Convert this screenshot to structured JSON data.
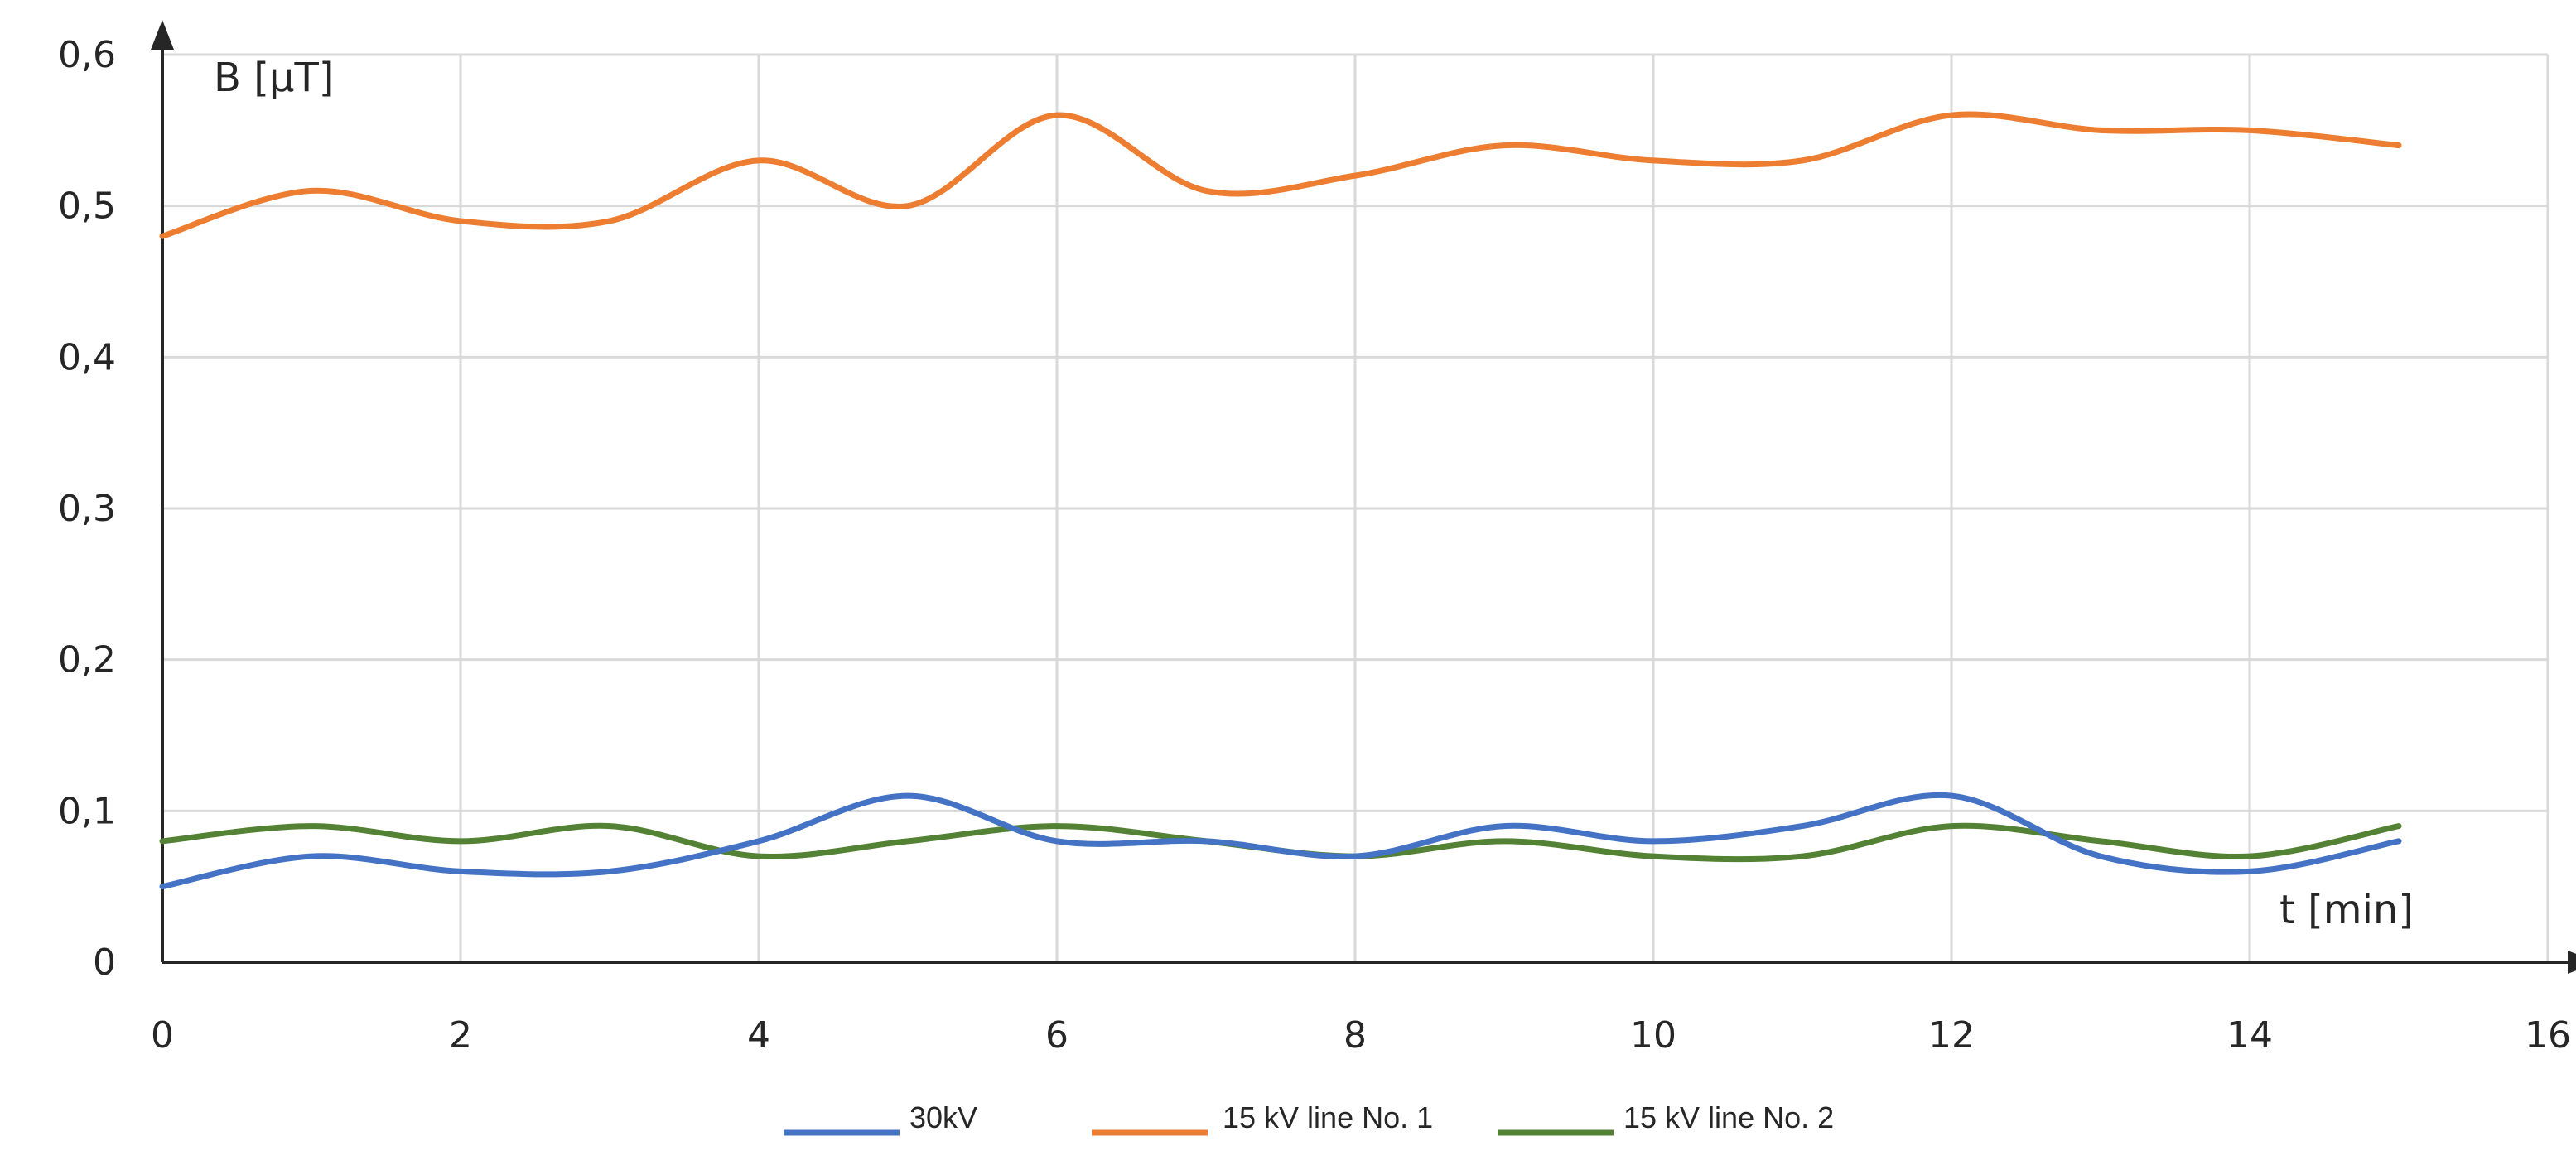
{
  "chart_data": {
    "type": "line",
    "title": "",
    "xlabel": "t [min]",
    "ylabel": "B [µT]",
    "xlim": [
      0,
      16
    ],
    "ylim": [
      0,
      0.6
    ],
    "x_ticks": [
      0,
      2,
      4,
      6,
      8,
      10,
      12,
      14,
      16
    ],
    "y_ticks": [
      0,
      0.1,
      0.2,
      0.3,
      0.4,
      0.5,
      0.6
    ],
    "x_tick_labels": [
      "0",
      "2",
      "4",
      "6",
      "8",
      "10",
      "12",
      "14",
      "16"
    ],
    "y_tick_labels": [
      "0",
      "0,1",
      "0,2",
      "0,3",
      "0,4",
      "0,5",
      "0,6"
    ],
    "grid": true,
    "legend_position": "bottom",
    "x": [
      0,
      1,
      2,
      3,
      4,
      5,
      6,
      7,
      8,
      9,
      10,
      11,
      12,
      13,
      14,
      15
    ],
    "series": [
      {
        "name": "30kV",
        "color": "#4472c4",
        "values": [
          0.05,
          0.07,
          0.06,
          0.06,
          0.08,
          0.11,
          0.08,
          0.08,
          0.07,
          0.09,
          0.08,
          0.09,
          0.11,
          0.07,
          0.06,
          0.08
        ]
      },
      {
        "name": "15 kV line No. 1",
        "color": "#ed7d31",
        "values": [
          0.48,
          0.51,
          0.49,
          0.49,
          0.53,
          0.5,
          0.56,
          0.51,
          0.52,
          0.54,
          0.53,
          0.53,
          0.56,
          0.55,
          0.55,
          0.54
        ]
      },
      {
        "name": "15 kV line No. 2",
        "color": "#548235",
        "values": [
          0.08,
          0.09,
          0.08,
          0.09,
          0.07,
          0.08,
          0.09,
          0.08,
          0.07,
          0.08,
          0.07,
          0.07,
          0.09,
          0.08,
          0.07,
          0.09
        ]
      }
    ]
  }
}
